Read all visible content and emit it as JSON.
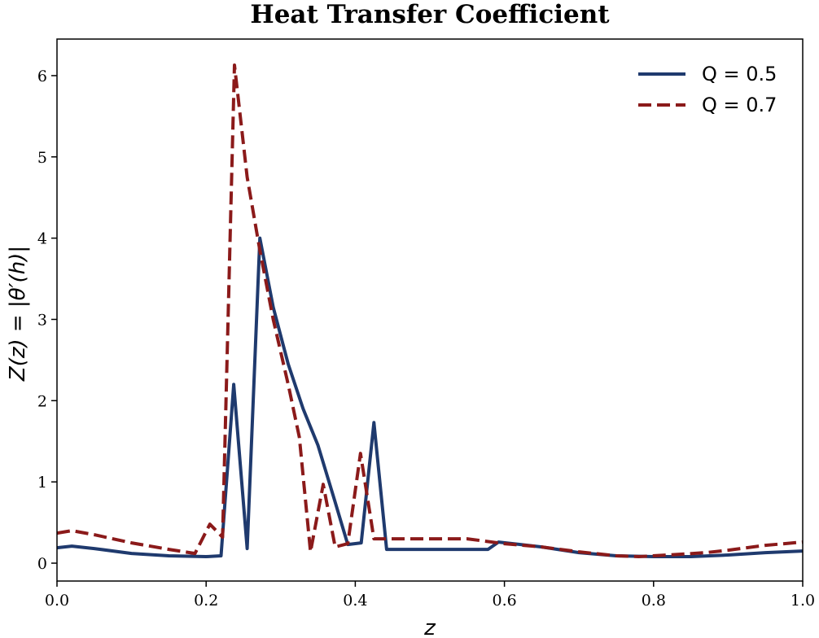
{
  "chart_data": {
    "type": "line",
    "title": "Heat Transfer Coefficient",
    "xlabel": "z",
    "ylabel": "Z(z) = |θ′(h)|",
    "xlim": [
      0.0,
      1.0
    ],
    "ylim": [
      -0.22,
      6.45
    ],
    "xticks": [
      "0.0",
      "0.2",
      "0.4",
      "0.6",
      "0.8",
      "1.0"
    ],
    "yticks": [
      "0",
      "1",
      "2",
      "3",
      "4",
      "5",
      "6"
    ],
    "grid": false,
    "legend_position": "top-right",
    "series": [
      {
        "name": "Q = 0.5",
        "legend_label": "Q = 0.5",
        "color": "#1f3a6e",
        "dash": "solid",
        "points": [
          [
            0.0,
            0.19
          ],
          [
            0.02,
            0.21
          ],
          [
            0.05,
            0.18
          ],
          [
            0.1,
            0.12
          ],
          [
            0.15,
            0.09
          ],
          [
            0.2,
            0.08
          ],
          [
            0.22,
            0.09
          ],
          [
            0.237,
            2.2
          ],
          [
            0.255,
            0.18
          ],
          [
            0.272,
            4.0
          ],
          [
            0.29,
            3.15
          ],
          [
            0.31,
            2.45
          ],
          [
            0.33,
            1.9
          ],
          [
            0.35,
            1.45
          ],
          [
            0.372,
            0.78
          ],
          [
            0.39,
            0.23
          ],
          [
            0.408,
            0.25
          ],
          [
            0.425,
            1.73
          ],
          [
            0.442,
            0.17
          ],
          [
            0.5,
            0.17
          ],
          [
            0.578,
            0.17
          ],
          [
            0.592,
            0.26
          ],
          [
            0.65,
            0.2
          ],
          [
            0.7,
            0.13
          ],
          [
            0.75,
            0.09
          ],
          [
            0.8,
            0.08
          ],
          [
            0.85,
            0.08
          ],
          [
            0.9,
            0.1
          ],
          [
            0.95,
            0.13
          ],
          [
            1.0,
            0.15
          ]
        ]
      },
      {
        "name": "Q = 0.7",
        "legend_label": "Q = 0.7",
        "color": "#8b1a1a",
        "dash": "dashed",
        "points": [
          [
            0.0,
            0.37
          ],
          [
            0.02,
            0.4
          ],
          [
            0.05,
            0.35
          ],
          [
            0.1,
            0.25
          ],
          [
            0.15,
            0.17
          ],
          [
            0.185,
            0.12
          ],
          [
            0.205,
            0.48
          ],
          [
            0.222,
            0.32
          ],
          [
            0.238,
            6.13
          ],
          [
            0.255,
            4.75
          ],
          [
            0.272,
            3.85
          ],
          [
            0.29,
            3.0
          ],
          [
            0.31,
            2.2
          ],
          [
            0.325,
            1.55
          ],
          [
            0.34,
            0.14
          ],
          [
            0.357,
            0.97
          ],
          [
            0.373,
            0.2
          ],
          [
            0.39,
            0.24
          ],
          [
            0.407,
            1.35
          ],
          [
            0.425,
            0.3
          ],
          [
            0.45,
            0.3
          ],
          [
            0.5,
            0.3
          ],
          [
            0.55,
            0.3
          ],
          [
            0.6,
            0.24
          ],
          [
            0.65,
            0.2
          ],
          [
            0.7,
            0.14
          ],
          [
            0.75,
            0.09
          ],
          [
            0.78,
            0.08
          ],
          [
            0.82,
            0.1
          ],
          [
            0.87,
            0.13
          ],
          [
            0.9,
            0.16
          ],
          [
            0.95,
            0.22
          ],
          [
            1.0,
            0.26
          ]
        ]
      }
    ]
  }
}
